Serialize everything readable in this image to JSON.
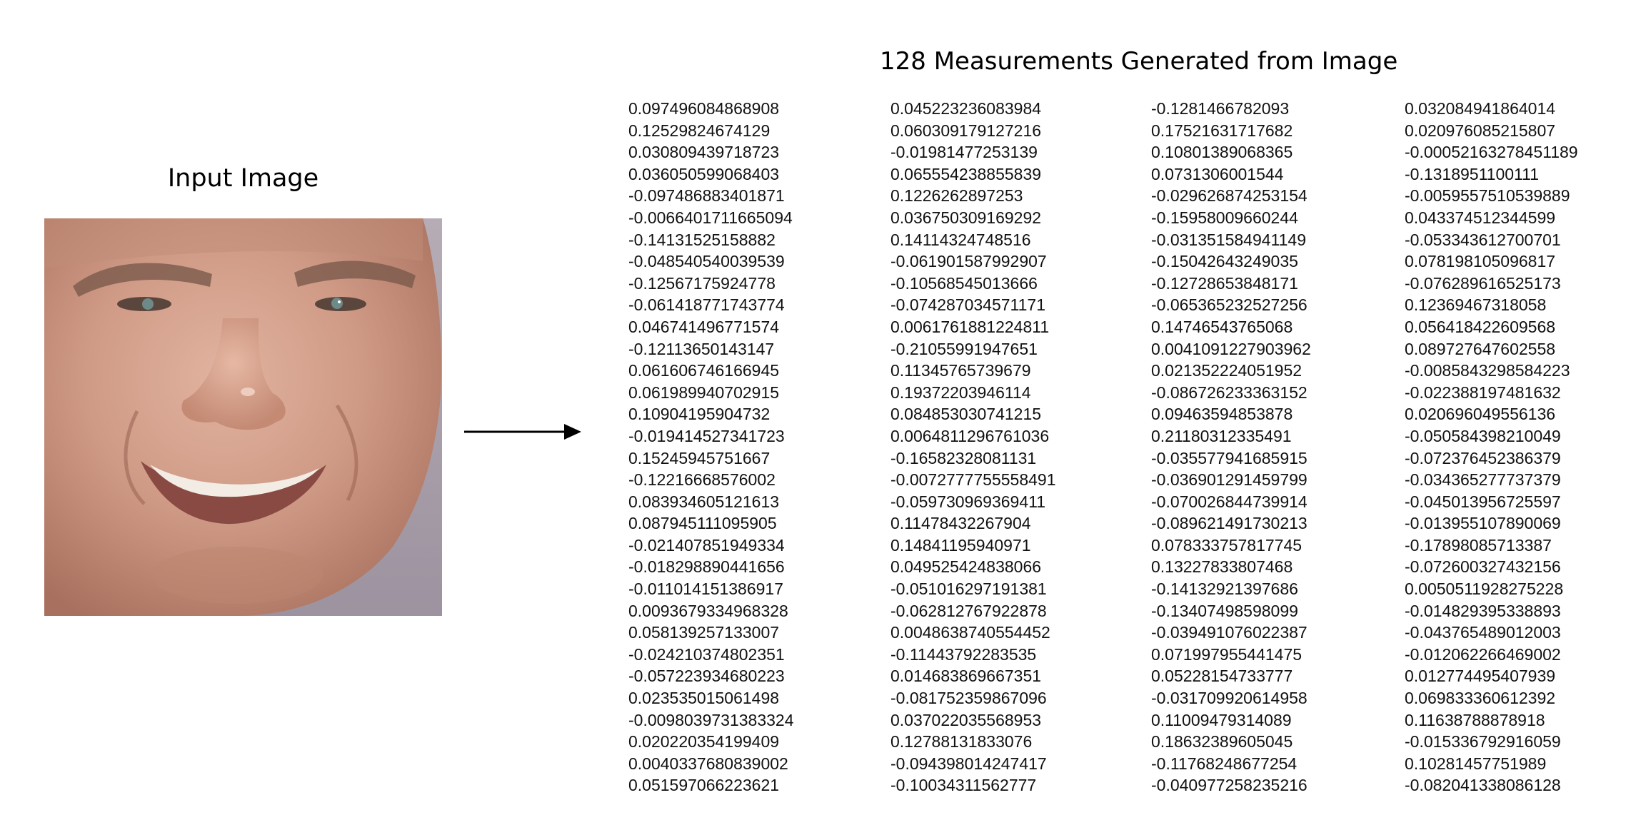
{
  "input_title": "Input Image",
  "measurements_title": "128 Measurements Generated from Image",
  "icons": {
    "arrow": "right-arrow",
    "face": "face-photo"
  },
  "colors": {
    "background": "#ffffff",
    "skin": "#c99480",
    "backdrop": "#a39ba6",
    "text": "#111111"
  },
  "columns": [
    [
      "0.097496084868908",
      "0.12529824674129",
      "0.030809439718723",
      "0.036050599068403",
      "-0.097486883401871",
      "-0.0066401711665094",
      "-0.14131525158882",
      "-0.048540540039539",
      "-0.12567175924778",
      "-0.061418771743774",
      "0.046741496771574",
      "-0.12113650143147",
      "0.061606746166945",
      "0.061989940702915",
      "0.10904195904732",
      "-0.019414527341723",
      "0.15245945751667",
      "-0.12216668576002",
      "0.083934605121613",
      "0.087945111095905",
      "-0.021407851949334",
      "-0.018298890441656",
      "-0.011014151386917",
      "0.0093679334968328",
      "0.058139257133007",
      "-0.024210374802351",
      "-0.057223934680223",
      "0.023535015061498",
      "-0.0098039731383324",
      "0.020220354199409",
      "0.0040337680839002",
      "0.051597066223621"
    ],
    [
      "0.045223236083984",
      "0.060309179127216",
      "-0.01981477253139",
      "0.065554238855839",
      "0.1226262897253",
      "0.036750309169292",
      "0.14114324748516",
      "-0.061901587992907",
      "-0.10568545013666",
      "-0.074287034571171",
      "0.0061761881224811",
      "-0.21055991947651",
      "0.11345765739679",
      "0.19372203946114",
      "0.084853030741215",
      "0.0064811296761036",
      "-0.16582328081131",
      "-0.0072777755558491",
      "-0.059730969369411",
      "0.11478432267904",
      "0.14841195940971",
      "0.049525424838066",
      "-0.051016297191381",
      "-0.062812767922878",
      "0.0048638740554452",
      "-0.11443792283535",
      "0.014683869667351",
      "-0.081752359867096",
      "0.037022035568953",
      "0.12788131833076",
      "-0.094398014247417",
      "-0.10034311562777"
    ],
    [
      "-0.1281466782093",
      "0.17521631717682",
      "0.10801389068365",
      "0.0731306001544",
      "-0.029626874253154",
      "-0.15958009660244",
      "-0.031351584941149",
      "-0.15042643249035",
      "-0.12728653848171",
      "-0.065365232527256",
      "0.14746543765068",
      "0.0041091227903962",
      "0.021352224051952",
      "-0.086726233363152",
      "0.09463594853878",
      "0.21180312335491",
      "-0.035577941685915",
      "-0.036901291459799",
      "-0.070026844739914",
      "-0.089621491730213",
      "0.078333757817745",
      "0.13227833807468",
      "-0.14132921397686",
      "-0.13407498598099",
      "-0.039491076022387",
      "0.071997955441475",
      "0.05228154733777",
      "-0.031709920614958",
      "0.11009479314089",
      "0.18632389605045",
      "-0.11768248677254",
      "-0.040977258235216"
    ],
    [
      "0.032084941864014",
      "0.020976085215807",
      "-0.00052163278451189",
      "-0.1318951100111",
      "-0.0059557510539889",
      "0.043374512344599",
      "-0.053343612700701",
      "0.078198105096817",
      "-0.076289616525173",
      "0.12369467318058",
      "0.056418422609568",
      "0.089727647602558",
      "-0.0085843298584223",
      "-0.022388197481632",
      "0.020696049556136",
      "-0.050584398210049",
      "-0.072376452386379",
      "-0.034365277737379",
      "-0.045013956725597",
      "-0.013955107890069",
      "-0.17898085713387",
      "-0.072600327432156",
      "0.0050511928275228",
      "-0.014829395338893",
      "-0.043765489012003",
      "-0.012062266469002",
      "0.012774495407939",
      "0.069833360612392",
      "0.11638788878918",
      "-0.015336792916059",
      "0.10281457751989",
      "-0.082041338086128"
    ]
  ]
}
